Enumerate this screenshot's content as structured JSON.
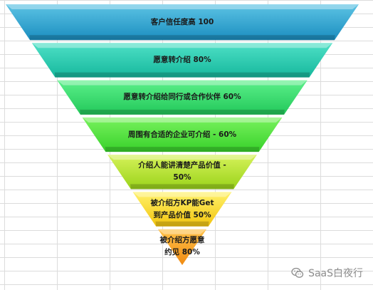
{
  "funnel": {
    "levels": [
      {
        "label": "客户信任度高  100",
        "color_top": "#5cc3e4",
        "color_bottom": "#1b8ec0"
      },
      {
        "label": "愿意转介绍  80%",
        "color_top": "#4ee0c6",
        "color_bottom": "#16b89d"
      },
      {
        "label": "愿意转介绍给同行或合作伙伴   60%",
        "color_top": "#5cf08a",
        "color_bottom": "#22c85a"
      },
      {
        "label": "周围有合适的企业可介绍  - 60%",
        "color_top": "#79f25e",
        "color_bottom": "#37d12a"
      },
      {
        "label": "介绍人能讲清楚产品价值  -\n50%",
        "color_top": "#d6f25a",
        "color_bottom": "#9ad31a"
      },
      {
        "label": "被介绍方KP能Get\n到产品价值  50%",
        "color_top": "#fff26a",
        "color_bottom": "#f2c40f"
      },
      {
        "label": "被介绍方愿意\n约见  80%",
        "color_top": "#ffc24a",
        "color_bottom": "#f08b12"
      }
    ]
  },
  "watermark": {
    "text": "SaaS白夜行",
    "icon": "wechat-icon"
  }
}
